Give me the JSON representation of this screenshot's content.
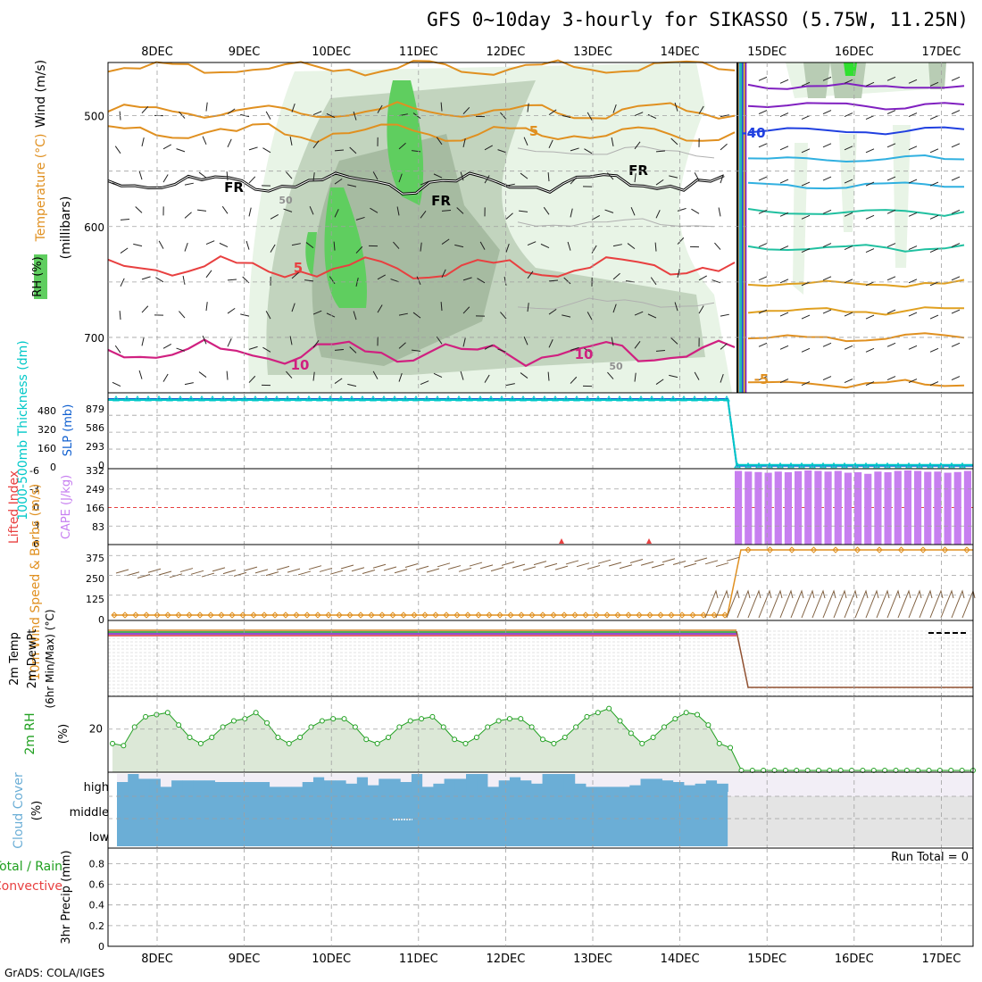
{
  "title": "GFS 0~10day 3-hourly for SIKASSO (5.75W, 11.25N)",
  "footer": "GrADS: COLA/IGES",
  "colors": {
    "rh_light": "#e8f4e6",
    "rh_mid": "#b8ccb4",
    "rh_dark": "#9ab094",
    "rh_green": "#5fce5f",
    "slp": "#1060d0",
    "thickness": "#00c8c8",
    "cape": "#c77ff0",
    "li": "#e84040",
    "wind10m": "#e09020",
    "rh2m": "#20a020",
    "cloud": "#6baed6",
    "cloud_clear": "#f2eef6",
    "grid": "#a0a0a0"
  },
  "chart_data": [
    {
      "panel": "upper_air",
      "type": "heatmap",
      "ylabels": [
        "Temperature (°C)",
        "Wind (m/s)",
        "RH (%)",
        "(millibars)"
      ],
      "y_ticks": [
        500,
        600,
        700
      ],
      "ylim": [
        452,
        750
      ],
      "x_ticks": [
        "8DEC",
        "9DEC",
        "10DEC",
        "11DEC",
        "12DEC",
        "13DEC",
        "14DEC",
        "15DEC",
        "16DEC",
        "17DEC"
      ],
      "contour_labels": [
        {
          "text": "5",
          "color": "#e09020"
        },
        {
          "text": "FR",
          "color": "#000000"
        },
        {
          "text": "FR",
          "color": "#000000"
        },
        {
          "text": "FR",
          "color": "#000000"
        },
        {
          "text": "5",
          "color": "#e84040"
        },
        {
          "text": "10",
          "color": "#d02080"
        },
        {
          "text": "10",
          "color": "#d02080"
        },
        {
          "text": "50",
          "color": "#909090"
        },
        {
          "text": "50",
          "color": "#909090"
        },
        {
          "text": "-40",
          "color": "#2040e0"
        },
        {
          "text": "-5",
          "color": "#e09020"
        }
      ]
    },
    {
      "panel": "slp_thickness",
      "type": "line",
      "ylabels": [
        "1000-500mb Thickness (dm)",
        "SLP (mb)"
      ],
      "thickness_ticks": [
        480,
        320,
        160,
        0
      ],
      "slp_ticks": [
        879,
        586,
        293,
        0
      ],
      "series": [
        {
          "name": "SLP",
          "before": 1160,
          "after": 4,
          "drop_day": 14.55
        },
        {
          "name": "Thickness",
          "before": 1160,
          "after": 4,
          "drop_day": 14.55
        }
      ]
    },
    {
      "panel": "cape_li",
      "type": "bar",
      "ylabels": [
        "Lifted Index",
        "CAPE (J/kg)"
      ],
      "li_ticks": [
        -6,
        -3,
        0,
        3,
        6
      ],
      "cape_ticks": [
        332,
        249,
        166,
        83
      ],
      "cape_values": [
        330,
        327,
        325,
        322,
        327,
        324,
        329,
        332,
        330,
        327,
        330,
        322,
        324,
        317,
        327,
        324,
        330,
        332,
        330,
        326,
        327,
        322,
        325,
        330
      ]
    },
    {
      "panel": "wind10m",
      "type": "line",
      "ylabels": [
        "10m Wind Speed & Barbs (m/s)"
      ],
      "y_ticks": [
        375,
        250,
        125,
        0
      ],
      "series": [
        {
          "name": "speed",
          "before": 0,
          "after": 410,
          "jump_day": 14.7
        }
      ]
    },
    {
      "panel": "temp2m",
      "type": "line",
      "ylabels": [
        "2m Temp",
        "2m DewPt",
        "(6hr Min/Max) (°C)"
      ],
      "series": [
        {
          "name": "temp",
          "before": "top",
          "after": "bottom",
          "drop_day": 14.6
        }
      ]
    },
    {
      "panel": "rh2m",
      "type": "area",
      "ylabels": [
        "2m RH",
        "(%)"
      ],
      "y_ticks": [
        20
      ],
      "ylim": [
        0,
        35
      ],
      "values": [
        13,
        12,
        21,
        26,
        27,
        28,
        22,
        16,
        13,
        16,
        21,
        24,
        25,
        28,
        23,
        16,
        13,
        16,
        21,
        24,
        25,
        25,
        21,
        15,
        13,
        16,
        21,
        24,
        25,
        26,
        21,
        15,
        13,
        16,
        21,
        24,
        25,
        25,
        21,
        15,
        13,
        16,
        21,
        26,
        28,
        30,
        24,
        18,
        13,
        16,
        21,
        25,
        28,
        27,
        22,
        13,
        11,
        0,
        0,
        0,
        0,
        0,
        0,
        0,
        0,
        0,
        0,
        0,
        0,
        0,
        0,
        0,
        0,
        0,
        0,
        0,
        0,
        0,
        0
      ]
    },
    {
      "panel": "cloud",
      "type": "area",
      "ylabels": [
        "Cloud Cover",
        "(%)"
      ],
      "levels": [
        "high",
        "middle",
        "low"
      ],
      "high_values": [
        0.5,
        1.0,
        0.7,
        0.7,
        0.2,
        0.6,
        0.6,
        0.6,
        0.6,
        0.5,
        0.5,
        0.5,
        0.5,
        0.5,
        0.2,
        0.2,
        0.2,
        0.5,
        0.8,
        0.6,
        0.6,
        0.4,
        0.8,
        0.3,
        0.7,
        0.7,
        0.5,
        1.0,
        0.2,
        0.4,
        0.7,
        0.7,
        1.0,
        1.0,
        0.2,
        0.6,
        0.8,
        0.6,
        0.4,
        1.0,
        1.0,
        1.0,
        0.4,
        0.2,
        0.2,
        0.2,
        0.2,
        0.3,
        0.7,
        0.7,
        0.6,
        0.5,
        0.3,
        0.4,
        0.6,
        0.4
      ],
      "clear_after_day": 14.55
    },
    {
      "panel": "precip",
      "type": "bar",
      "ylabels": [
        "3hr Precip (mm)",
        "Total / Rain",
        "Convective"
      ],
      "y_ticks": [
        0,
        0.2,
        0.4,
        0.6,
        0.8
      ],
      "ylim": [
        0,
        0.95
      ],
      "run_total": "Run Total = 0",
      "values": []
    }
  ]
}
